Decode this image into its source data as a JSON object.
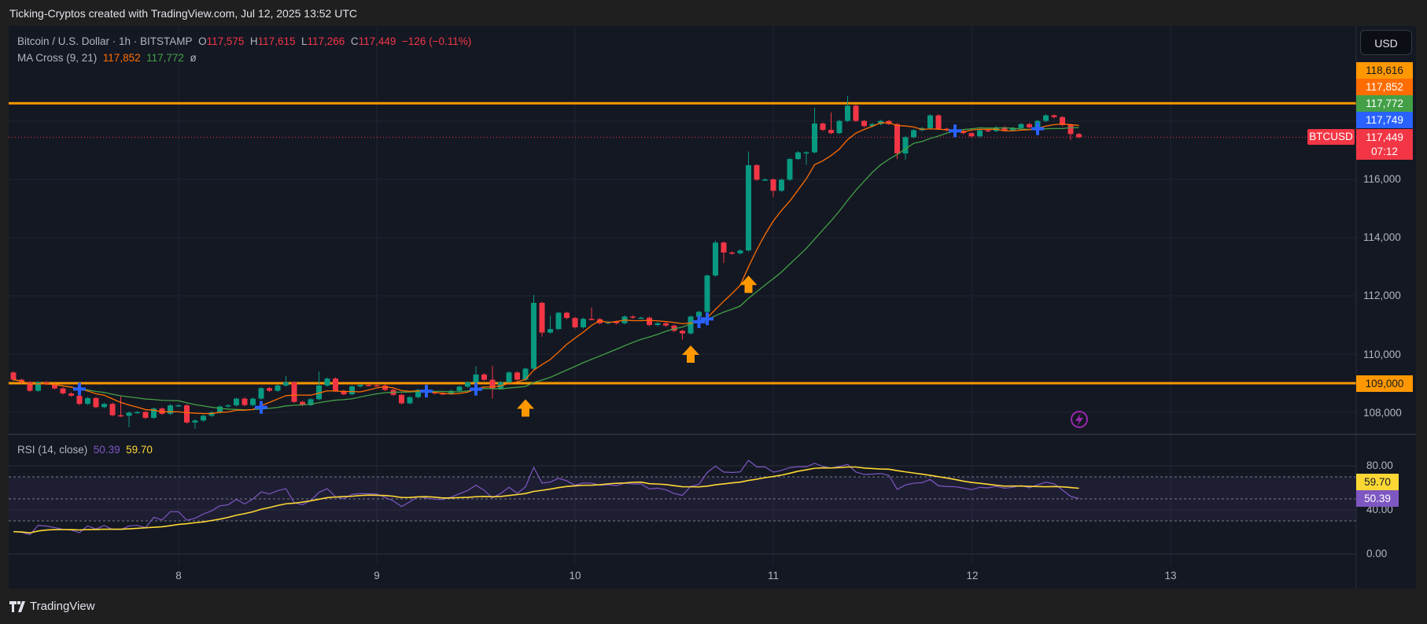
{
  "header": {
    "attribution": "Ticking-Cryptos created with TradingView.com, Jul 12, 2025 13:52 UTC"
  },
  "legend": {
    "symbol": "Bitcoin / U.S. Dollar · 1h · BITSTAMP",
    "o_label": "O",
    "o": "117,575",
    "h_label": "H",
    "h": "117,615",
    "l_label": "L",
    "l": "117,266",
    "c_label": "C",
    "c": "117,449",
    "change": "−126 (−0.11%)",
    "ma_name": "MA Cross (9, 21)",
    "ma_fast": "117,852",
    "ma_slow": "117,772",
    "ma_extra": "ø"
  },
  "rsi_legend": {
    "name": "RSI (14, close)",
    "value": "50.39",
    "ma": "59.70"
  },
  "price_axis": {
    "currency": "USD",
    "ticks": [
      "116,000",
      "114,000",
      "112,000",
      "110,000",
      "108,000"
    ],
    "tags": {
      "resistance": "118,616",
      "ma_fast": "117,852",
      "ma_slow": "117,772",
      "cross": "117,749",
      "last_price": "117,449",
      "countdown": "07:12",
      "symbol": "BTCUSD",
      "support": "109,000"
    }
  },
  "rsi_axis": {
    "ticks": [
      "80.00",
      "40.00",
      "0.00"
    ],
    "rsi_tag": "50.39",
    "ma_tag": "59.70"
  },
  "time_axis": [
    "8",
    "9",
    "10",
    "11",
    "12",
    "13"
  ],
  "footer": {
    "brand": "TradingView"
  },
  "colors": {
    "up": "#089981",
    "down": "#f23645",
    "ma_fast": "#ff6d00",
    "ma_slow": "#43a047",
    "cross": "#2962ff",
    "level": "#ff9800",
    "rsi": "#7e57c2",
    "rsi_ma": "#fdd835",
    "background": "#141823"
  },
  "chart_data": {
    "type": "candlestick",
    "interval": "1h",
    "x_start": "Jul 7 04:00",
    "x_ticks": [
      "8",
      "9",
      "10",
      "11",
      "12",
      "13"
    ],
    "ylim": [
      107000,
      119500
    ],
    "grid": true,
    "first_open": 109370,
    "closes": [
      109120,
      109030,
      108740,
      109030,
      108970,
      108820,
      108650,
      108570,
      108290,
      108490,
      108180,
      108290,
      107900,
      107880,
      107990,
      108010,
      107810,
      108130,
      107950,
      108240,
      108240,
      107650,
      107720,
      107880,
      108000,
      108200,
      108240,
      108470,
      108250,
      108470,
      108830,
      108740,
      108920,
      109030,
      108360,
      108250,
      108450,
      108920,
      109160,
      108740,
      108620,
      108890,
      108940,
      108930,
      108920,
      108770,
      108600,
      108310,
      108520,
      108770,
      108700,
      108650,
      108640,
      108740,
      108880,
      109030,
      109300,
      109120,
      108820,
      109030,
      109370,
      109120,
      109500,
      111760,
      110740,
      110860,
      111420,
      111240,
      110920,
      111210,
      111200,
      111060,
      111110,
      111060,
      111290,
      111250,
      111250,
      111000,
      111060,
      110980,
      110800,
      110710,
      111290,
      111450,
      112700,
      113830,
      113490,
      113460,
      113560,
      116490,
      115990,
      116000,
      115610,
      115990,
      116700,
      116930,
      116930,
      117920,
      117700,
      117590,
      118010,
      118530,
      118010,
      117830,
      117900,
      118010,
      117900,
      116890,
      117450,
      117690,
      117760,
      118200,
      117740,
      117690,
      117670,
      117590,
      117480,
      117690,
      117660,
      117790,
      117690,
      117760,
      117900,
      117790,
      118010,
      118200,
      118140,
      117870,
      117560,
      117449
    ],
    "high_overrides": {
      "13": 108550,
      "33": 109250,
      "37": 109400,
      "56": 109580,
      "58": 109600,
      "63": 112030,
      "65": 111320,
      "70": 111600,
      "85": 113900,
      "89": 116960,
      "97": 118460,
      "101": 118860,
      "99": 118300
    },
    "low_overrides": {
      "14": 107490,
      "22": 107440,
      "58": 108470,
      "64": 110600,
      "81": 110500,
      "86": 113130,
      "92": 115400,
      "96": 116500,
      "107": 116700,
      "108": 116680,
      "128": 117350
    },
    "ma_periods": [
      9,
      21
    ],
    "ma_cross_indices": [
      8,
      30,
      50,
      56,
      83,
      84,
      114,
      124
    ],
    "levels": [
      118616,
      109000
    ],
    "last_price": 117449,
    "arrows": [
      {
        "index": 62,
        "price": 108150
      },
      {
        "index": 82,
        "price": 110000
      },
      {
        "index": 89,
        "price": 112400
      }
    ],
    "rsi": {
      "period": 14,
      "ma_period": 14,
      "ticks": [
        80,
        40,
        0
      ],
      "bands": [
        70,
        50,
        30
      ],
      "last": 50.39,
      "ma_last": 59.7
    }
  }
}
